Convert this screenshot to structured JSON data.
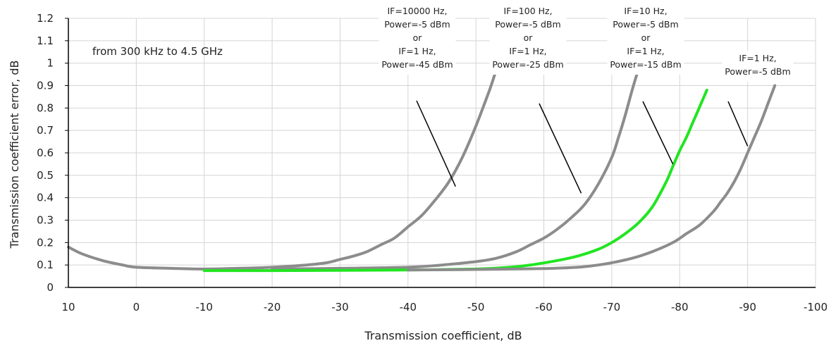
{
  "chart_data": {
    "type": "line",
    "title": "",
    "xlabel": "Transmission coefficient, dB",
    "ylabel": "Transmission coefficient error, dB",
    "xlim": [
      10,
      -100
    ],
    "ylim": [
      0,
      1.2
    ],
    "x_ticks": [
      "10",
      "0",
      "-10",
      "-20",
      "-30",
      "-40",
      "-50",
      "-60",
      "-70",
      "-80",
      "-90",
      "-100"
    ],
    "y_ticks": [
      "0",
      "0.1",
      "0.2",
      "0.3",
      "0.4",
      "0.5",
      "0.6",
      "0.7",
      "0.8",
      "0.9",
      "1",
      "1.1",
      "1.2"
    ],
    "grid": true,
    "note": "from 300 kHz to 4.5 GHz",
    "series": [
      {
        "color": "#8c8c8c",
        "x": [
          10,
          8,
          5,
          2,
          0,
          -5,
          -10,
          -15,
          -20,
          -25,
          -28,
          -30,
          -32,
          -34,
          -36,
          -38,
          -40,
          -42,
          -44,
          -46,
          -48,
          -50,
          -52,
          -53,
          -54
        ],
        "y": [
          0.18,
          0.15,
          0.12,
          0.1,
          0.09,
          0.085,
          0.082,
          0.085,
          0.09,
          0.1,
          0.11,
          0.125,
          0.14,
          0.16,
          0.19,
          0.22,
          0.27,
          0.32,
          0.39,
          0.47,
          0.58,
          0.72,
          0.88,
          0.97,
          1.05
        ]
      },
      {
        "color": "#8c8c8c",
        "x": [
          -20,
          -30,
          -40,
          -45,
          -50,
          -53,
          -56,
          -58,
          -60,
          -62,
          -64,
          -66,
          -68,
          -70,
          -71,
          -72,
          -73,
          -74
        ],
        "y": [
          0.082,
          0.085,
          0.09,
          0.1,
          0.115,
          0.13,
          0.16,
          0.19,
          0.22,
          0.26,
          0.31,
          0.37,
          0.46,
          0.58,
          0.67,
          0.77,
          0.88,
          0.98
        ]
      },
      {
        "color": "#22e522",
        "x": [
          -10,
          -20,
          -30,
          -40,
          -50,
          -55,
          -58,
          -62,
          -65,
          -68,
          -70,
          -72,
          -74,
          -76,
          -78,
          -79,
          -80,
          -81,
          -82,
          -83,
          -84
        ],
        "y": [
          0.075,
          0.075,
          0.076,
          0.078,
          0.082,
          0.09,
          0.1,
          0.12,
          0.14,
          0.17,
          0.2,
          0.24,
          0.29,
          0.36,
          0.47,
          0.54,
          0.61,
          0.67,
          0.74,
          0.81,
          0.88
        ]
      },
      {
        "color": "#8c8c8c",
        "x": [
          -40,
          -50,
          -60,
          -65,
          -68,
          -70,
          -73,
          -76,
          -79,
          -81,
          -83,
          -85,
          -86,
          -87,
          -88,
          -89,
          -90,
          -91,
          -92,
          -93,
          -94
        ],
        "y": [
          0.078,
          0.08,
          0.084,
          0.09,
          0.1,
          0.11,
          0.13,
          0.16,
          0.2,
          0.24,
          0.28,
          0.34,
          0.38,
          0.42,
          0.47,
          0.53,
          0.6,
          0.67,
          0.74,
          0.82,
          0.9
        ]
      }
    ],
    "annotations": [
      {
        "lines": [
          "IF=10000 Hz,",
          "Power=-5 dBm",
          "or",
          "IF=1 Hz,",
          "Power=-45 dBm"
        ],
        "point": [
          -47,
          0.45
        ]
      },
      {
        "lines": [
          "IF=100 Hz,",
          "Power=-5 dBm",
          "or",
          "IF=1 Hz,",
          "Power=-25 dBm"
        ],
        "point": [
          -65.5,
          0.42
        ]
      },
      {
        "lines": [
          "IF=10 Hz,",
          "Power=-5 dBm",
          "or",
          "IF=1 Hz,",
          "Power=-15 dBm"
        ],
        "point": [
          -79,
          0.55
        ]
      },
      {
        "lines": [
          "IF=1 Hz,",
          "Power=-5 dBm"
        ],
        "point": [
          -90,
          0.63
        ]
      }
    ]
  }
}
